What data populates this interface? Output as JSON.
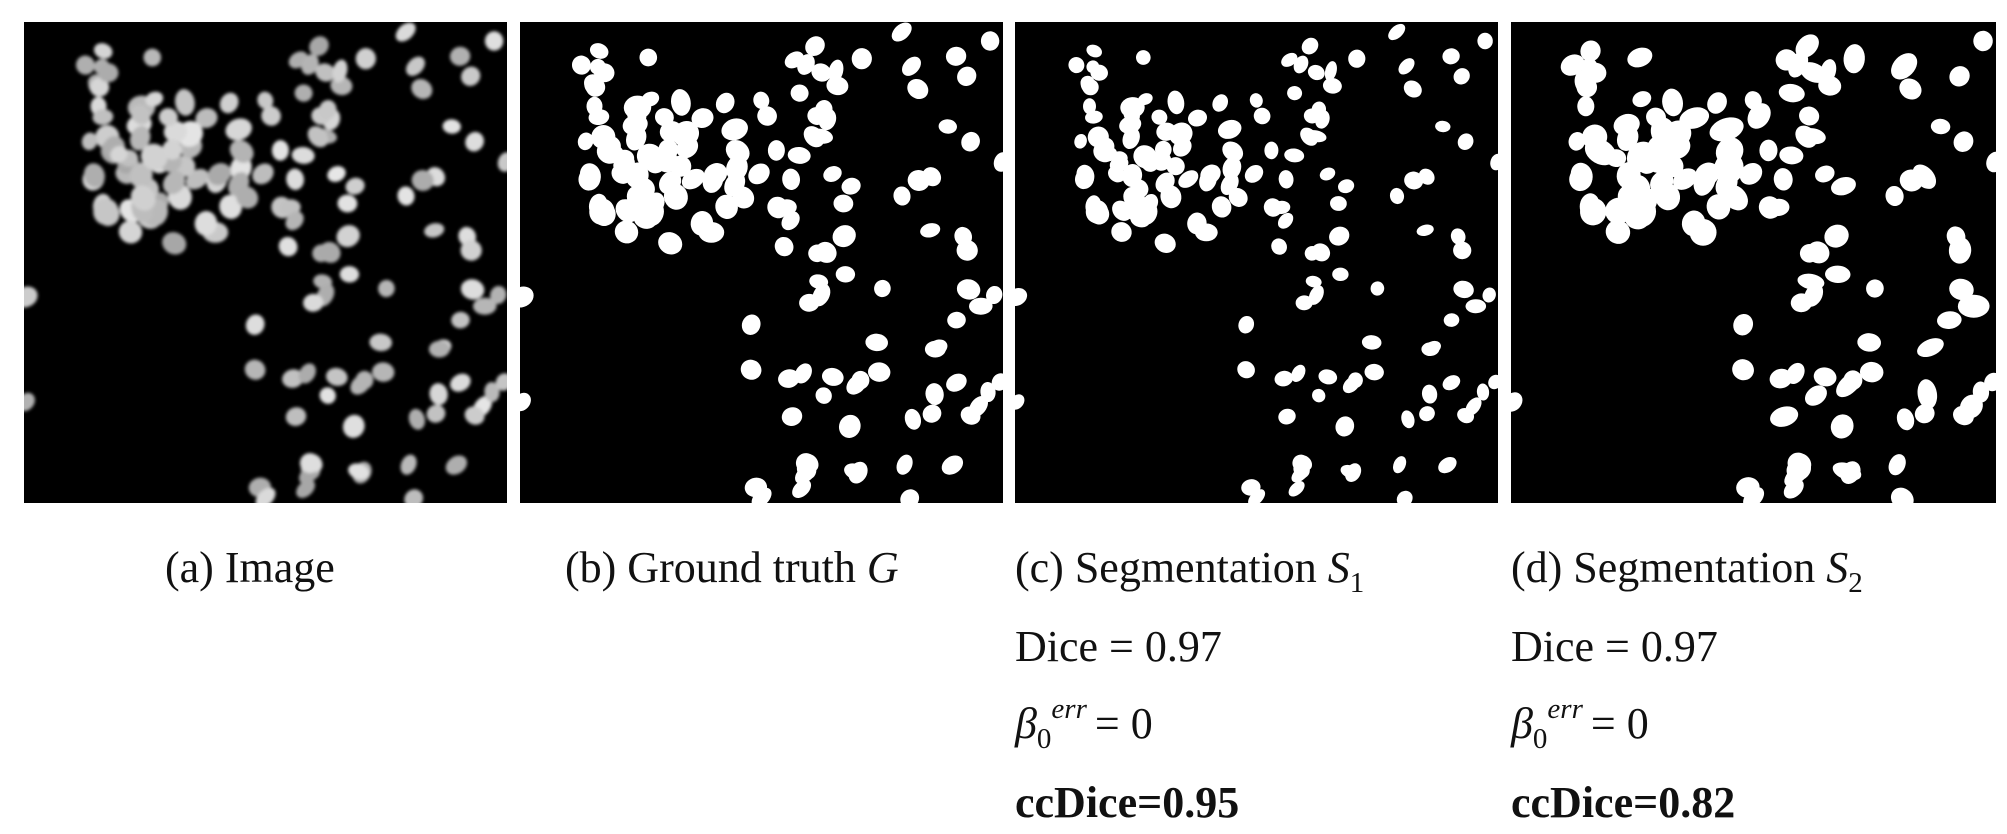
{
  "figure": {
    "panels": [
      {
        "id": "a",
        "caption": "(a) Image"
      },
      {
        "id": "b",
        "caption": "(b) Ground truth",
        "symbol": "G"
      },
      {
        "id": "c",
        "caption": "(c) Segmentation",
        "symbol": "S",
        "subscript": "1",
        "dice": "Dice = 0.97",
        "beta_symbol": "β",
        "beta_sub": "0",
        "beta_sup": "err",
        "beta_value": "= 0",
        "ccdice": "ccDice=0.95"
      },
      {
        "id": "d",
        "caption": "(d) Segmentation",
        "symbol": "S",
        "subscript": "2",
        "dice": "Dice = 0.97",
        "beta_symbol": "β",
        "beta_sub": "0",
        "beta_sup": "err",
        "beta_value": "= 0",
        "ccdice": "ccDice=0.82"
      }
    ],
    "colors": {
      "background": "#000000",
      "mask": "#ffffff",
      "nucleus_gray": "#9a9a9a"
    }
  }
}
